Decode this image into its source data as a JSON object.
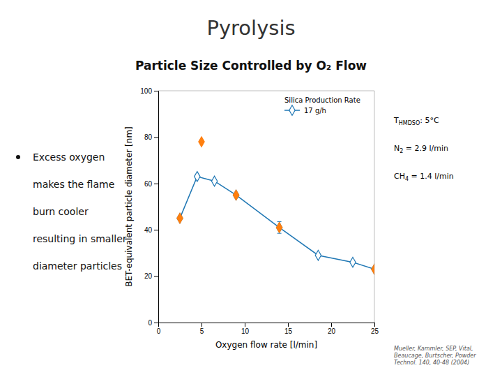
{
  "chart_data": {
    "type": "line",
    "title": "Pyrolysis",
    "subtitle": "Particle Size Controlled by O₂ Flow",
    "x_label": "Oxygen flow rate [l/min]",
    "y_label": "BET-equivalent particle diameter [nm]",
    "xlim": [
      0,
      25
    ],
    "ylim": [
      0,
      100
    ],
    "xticks": [
      0,
      5,
      10,
      15,
      20,
      25
    ],
    "yticks": [
      0,
      20,
      40,
      60,
      80,
      100
    ],
    "grid": false,
    "legend": "upper right",
    "legend_title": "Silica Production Rate",
    "series": [
      {
        "name": "17 g/h",
        "marker": "diamond-open",
        "line_style": "solid",
        "x": [
          2.5,
          4.5,
          6.5,
          9.0,
          14.0,
          18.5,
          22.5,
          25.0
        ],
        "values": [
          45,
          63,
          61,
          55,
          41,
          29,
          26,
          23
        ],
        "errors": [
          null,
          null,
          null,
          null,
          2.5,
          null,
          null,
          null
        ]
      },
      {
        "marker": "diamond",
        "line_style": "none",
        "x": [
          2.5,
          5.0,
          9.0,
          14.0,
          25.0
        ],
        "values": [
          45,
          78,
          55,
          41,
          23
        ]
      }
    ],
    "annotations": [
      {
        "text": [
          "Excess oxygen",
          "makes the flame",
          "burn cooler",
          "resulting in smaller",
          "diameter particles"
        ]
      },
      {
        "text": [
          [
            "T",
            "HMDSO",
            ": 5°C"
          ],
          [
            "N",
            "2",
            " = 2.9 l/min"
          ],
          [
            "CH",
            "4",
            " = 1.4 l/min"
          ]
        ]
      },
      {
        "text": [
          "Mueller, Kammler, SEP, Vital,",
          "Beaucage, Burtscher, Powder",
          "Technol. 140, 40-48 (2004)"
        ]
      }
    ]
  }
}
